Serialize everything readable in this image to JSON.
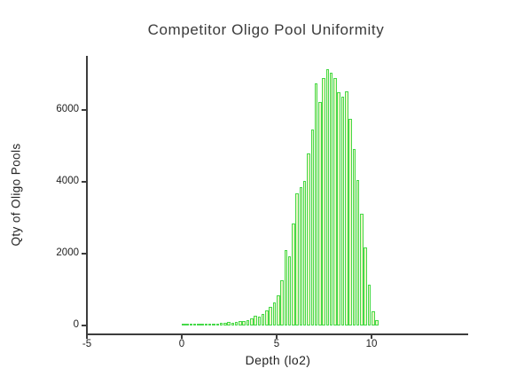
{
  "chart_data": {
    "type": "bar",
    "title": "Competitor Oligo Pool Uniformity",
    "xlabel": "Depth (lo2)",
    "ylabel": "Qty of Oligo Pools",
    "xlim": [
      -5,
      15
    ],
    "ylim": [
      0,
      7400
    ],
    "xticks": [
      "-5",
      "0",
      "5",
      "10"
    ],
    "xtick_values": [
      -5,
      0,
      5,
      10
    ],
    "yticks": [
      "0",
      "2000",
      "4000",
      "6000"
    ],
    "ytick_values": [
      0,
      2000,
      4000,
      6000
    ],
    "grid": false,
    "legend": null,
    "bin_start": 0.0,
    "bin_width": 0.2,
    "values": [
      15,
      12,
      14,
      16,
      15,
      18,
      20,
      24,
      26,
      30,
      38,
      48,
      65,
      52,
      75,
      85,
      100,
      120,
      165,
      250,
      210,
      290,
      390,
      500,
      620,
      800,
      1240,
      2060,
      1900,
      2800,
      3660,
      3830,
      4000,
      4770,
      5430,
      6700,
      6200,
      6850,
      7100,
      7000,
      6870,
      6460,
      6340,
      6500,
      5730,
      4890,
      4030,
      3090,
      2150,
      1110,
      370,
      120
    ],
    "colors": {
      "bar_fill": "#ebf4c5",
      "bar_stroke": "#45d948",
      "axis": "#3d3d3d",
      "title_text": "#3a3a3a",
      "tick_text": "#1e1e1e",
      "background": "#ffffff"
    }
  }
}
